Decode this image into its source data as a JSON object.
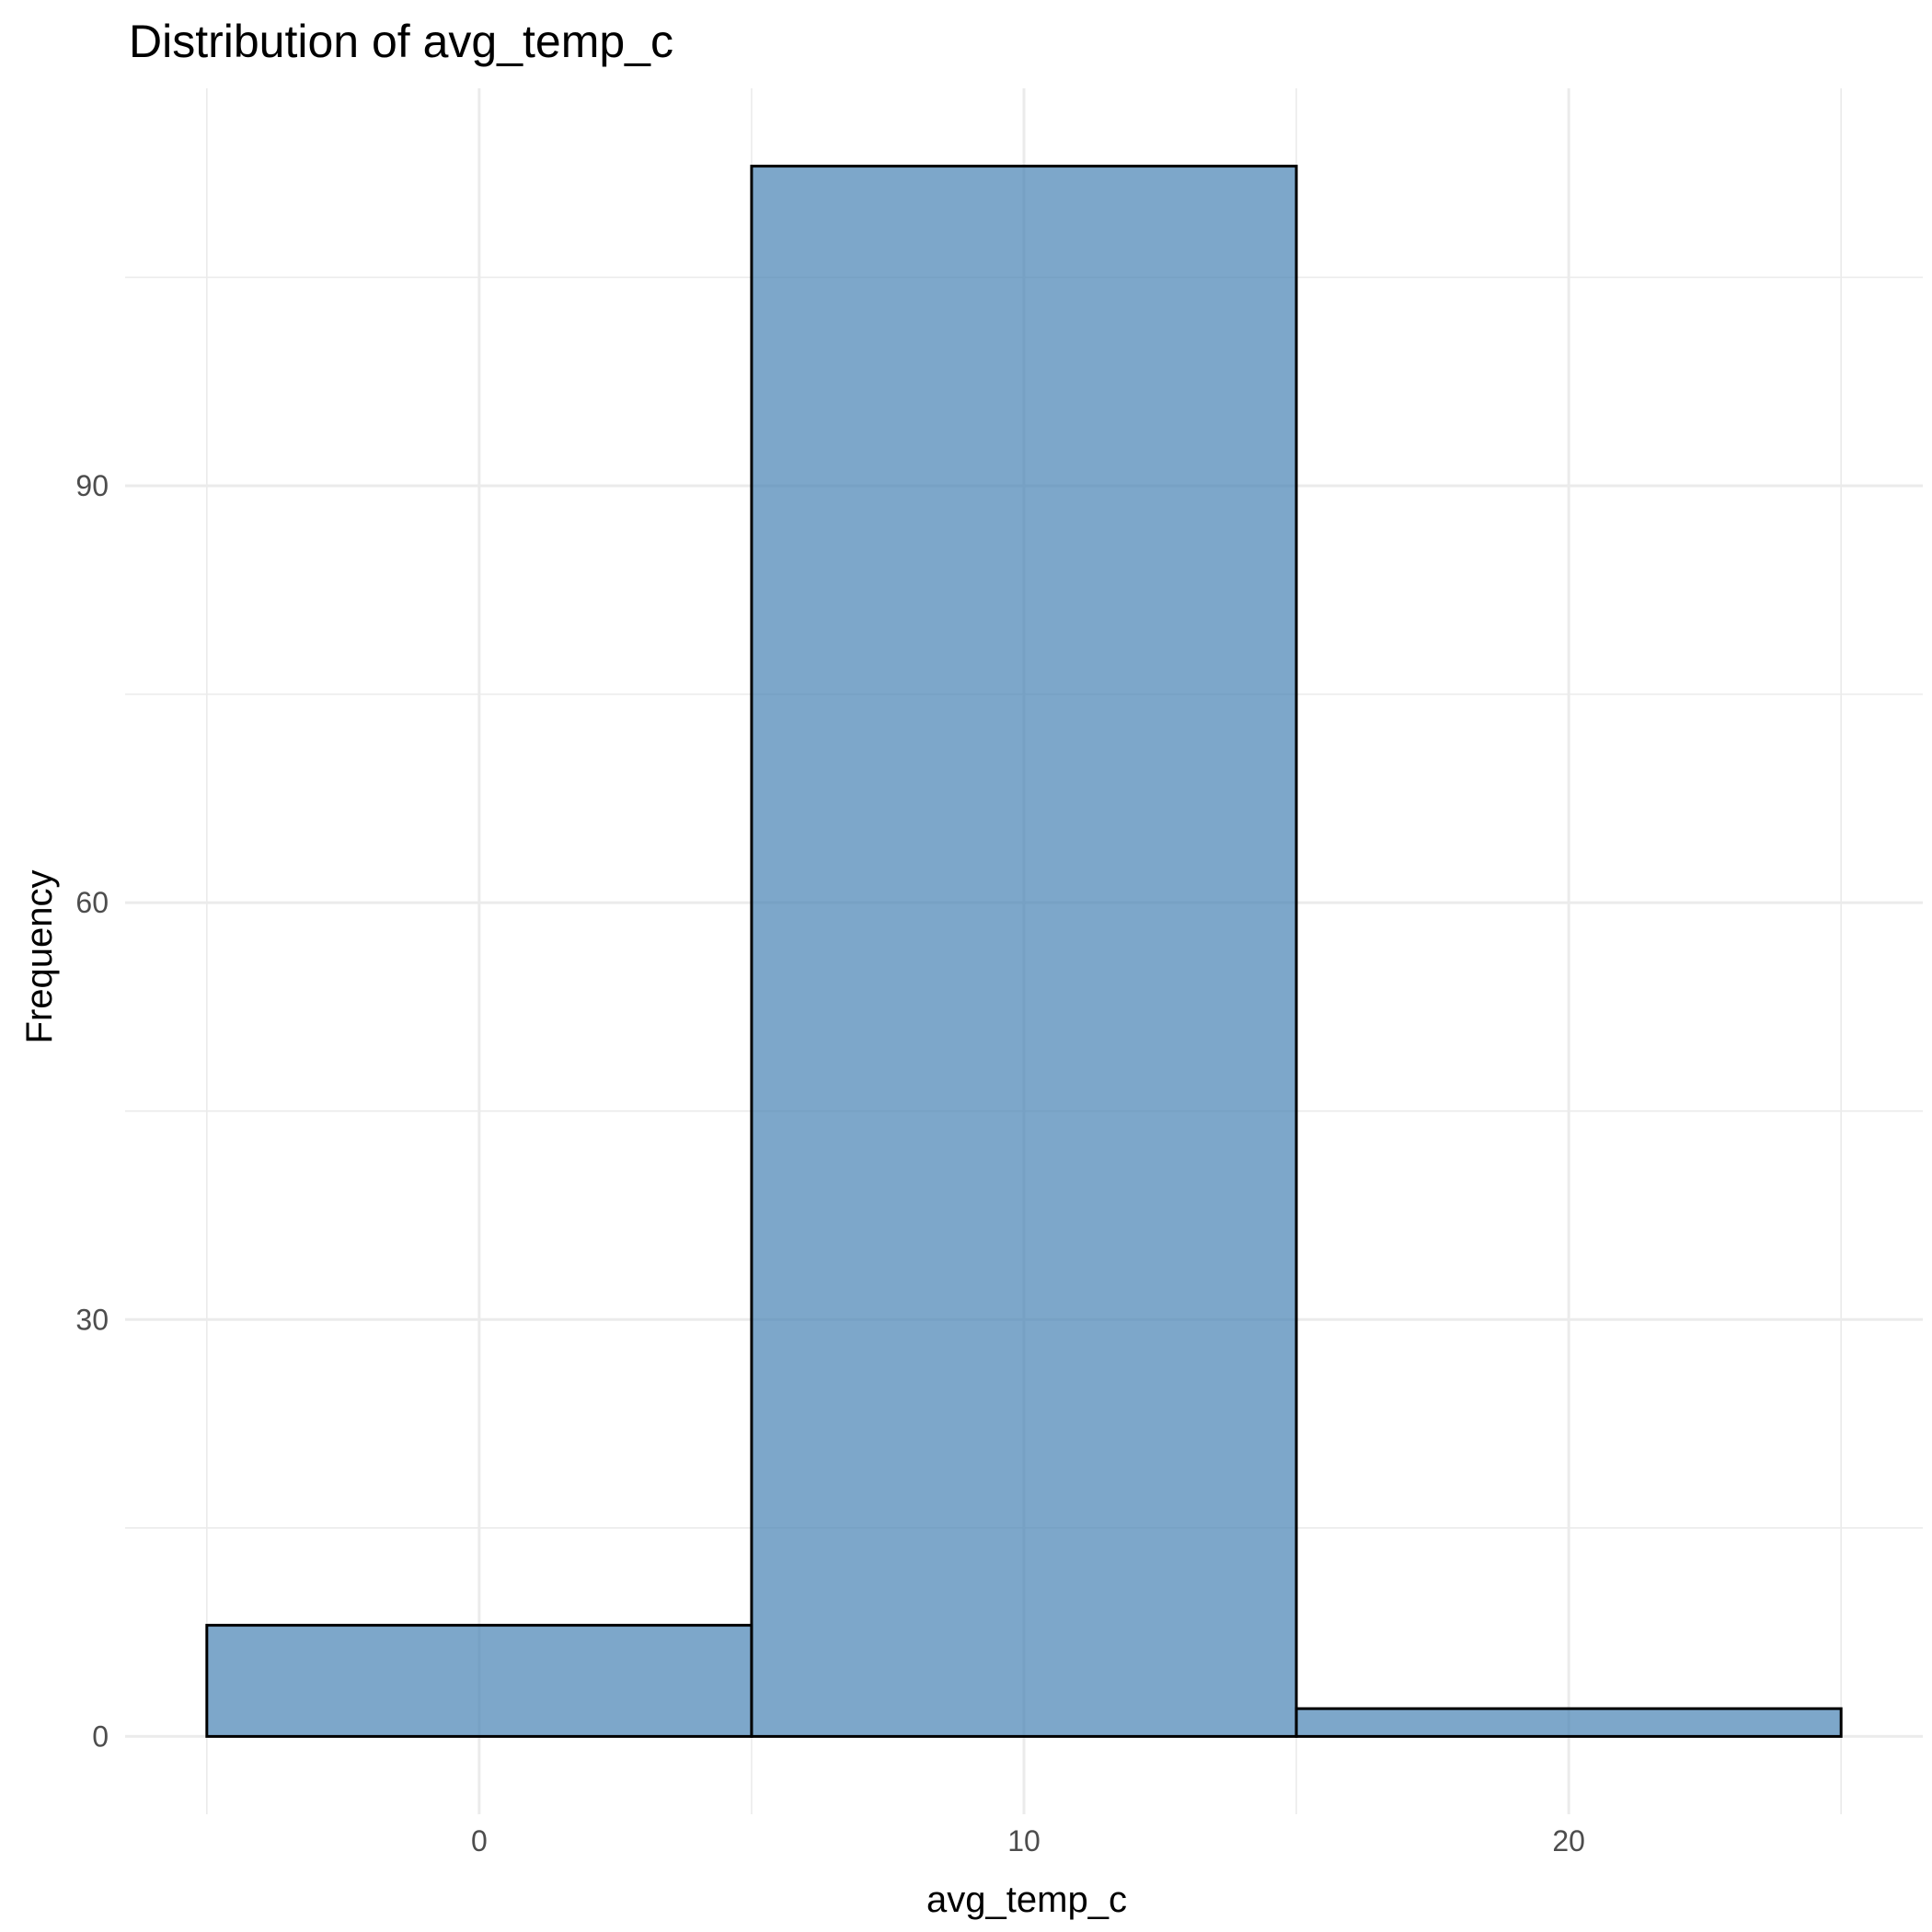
{
  "chart_data": {
    "type": "bar",
    "title": "Distribution of avg_temp_c",
    "xlabel": "avg_temp_c",
    "ylabel": "Frequency",
    "bins": [
      {
        "x_start": -5,
        "x_end": 5,
        "count": 8
      },
      {
        "x_start": 5,
        "x_end": 15,
        "count": 113
      },
      {
        "x_start": 15,
        "x_end": 25,
        "count": 2
      }
    ],
    "xlim": [
      -6.5,
      26.5
    ],
    "ylim": [
      -5.6,
      118.6
    ],
    "x_ticks": [
      0,
      10,
      20
    ],
    "x_tick_labels": [
      "0",
      "10",
      "20"
    ],
    "y_ticks": [
      0,
      30,
      60,
      90
    ],
    "y_tick_labels": [
      "0",
      "30",
      "60",
      "90"
    ],
    "x_minor_ticks": [
      -5,
      5,
      15,
      25
    ],
    "y_minor_ticks": [
      15,
      45,
      75,
      105
    ],
    "grid": true,
    "legend": "none",
    "bar_fill_color": "#4682b4",
    "bar_fill_opacity": 0.7,
    "bar_outline_color": "#000000",
    "grid_color": "#ebebeb"
  }
}
